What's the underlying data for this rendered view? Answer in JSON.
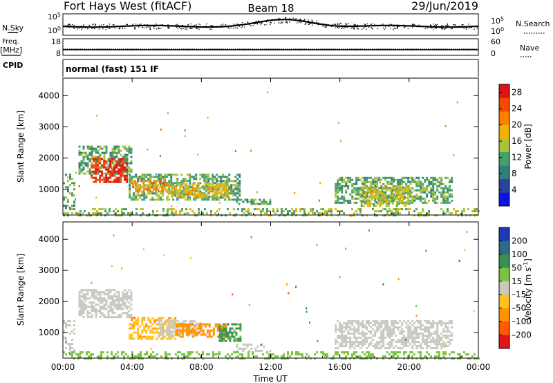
{
  "header": {
    "station": "Fort Hays West (fitACF)",
    "beam": "Beam 18",
    "date": "29/Jun/2019"
  },
  "top_panels": {
    "nsky_label": "N.Sky",
    "nsearch_label": "N.Search",
    "nsky_tick_top": "10^5",
    "nsky_tick_bottom": "10^0",
    "nsearch_tick_top": "10^5",
    "nsearch_tick_bottom": "10^0",
    "freq_label_line1": "Freq.",
    "freq_label_line2": "[MHz]",
    "freq_tick_top": "18",
    "freq_tick_bottom": "8",
    "nave_label": "Nave",
    "nave_tick_top": "60",
    "nave_tick_bottom": "0",
    "cpid_label": "CPID",
    "mode_text": "normal (fast) 151 IF"
  },
  "chart_data": [
    {
      "type": "heatmap",
      "panel": "power",
      "ylabel": "Slant Range [km]",
      "xlabel": "",
      "x_tick_labels": [
        "00:00",
        "04:00",
        "08:00",
        "12:00",
        "16:00",
        "20:00",
        "00:00"
      ],
      "x_ticks_hours": [
        0,
        4,
        8,
        12,
        16,
        20,
        24
      ],
      "xlim_hours": [
        0,
        24
      ],
      "ylim_km": [
        180,
        4560
      ],
      "y_ticks": [
        1000,
        2000,
        3000,
        4000
      ],
      "colorbar": {
        "label": "Power [dB]",
        "tick_labels": [
          "4",
          "8",
          "12",
          "16",
          "20",
          "24",
          "28"
        ],
        "range": [
          0,
          30
        ],
        "colors": [
          "#0a14e6",
          "#2545a0",
          "#2f7f7a",
          "#46a06a",
          "#a8c23a",
          "#f0b400",
          "#ff7f00",
          "#f24a00",
          "#e01414"
        ]
      },
      "regions": [
        {
          "t0": 0.0,
          "t1": 0.7,
          "r0": 400,
          "r1": 1500,
          "value": 12
        },
        {
          "t0": 0.9,
          "t1": 4.0,
          "r0": 1500,
          "r1": 2400,
          "value": 12
        },
        {
          "t0": 1.6,
          "t1": 3.7,
          "r0": 1250,
          "r1": 2000,
          "value": 27
        },
        {
          "t0": 3.8,
          "t1": 10.2,
          "r0": 700,
          "r1": 1500,
          "value": 12
        },
        {
          "t0": 4.0,
          "t1": 6.0,
          "r0": 950,
          "r1": 1300,
          "value": 20
        },
        {
          "t0": 6.0,
          "t1": 9.5,
          "r0": 800,
          "r1": 1200,
          "value": 17
        },
        {
          "t0": 10.0,
          "t1": 12.0,
          "r0": 550,
          "r1": 700,
          "value": 12
        },
        {
          "t0": 15.7,
          "t1": 22.5,
          "r0": 600,
          "r1": 1400,
          "value": 12
        },
        {
          "t0": 17.2,
          "t1": 20.0,
          "r0": 450,
          "r1": 1100,
          "value": 16
        },
        {
          "t0": 0.0,
          "t1": 24.0,
          "r0": 190,
          "r1": 400,
          "value": 14
        }
      ]
    },
    {
      "type": "heatmap",
      "panel": "velocity",
      "ylabel": "Slant Range [km]",
      "xlabel": "Time UT",
      "x_tick_labels": [
        "00:00",
        "04:00",
        "08:00",
        "12:00",
        "16:00",
        "20:00",
        "00:00"
      ],
      "x_ticks_hours": [
        0,
        4,
        8,
        12,
        16,
        20,
        24
      ],
      "xlim_hours": [
        0,
        24
      ],
      "ylim_km": [
        180,
        4560
      ],
      "y_ticks": [
        1000,
        2000,
        3000,
        4000
      ],
      "colorbar": {
        "label": "Velocity [m s^-1]",
        "tick_labels": [
          "200",
          "100",
          "50",
          "15",
          "-15",
          "-50",
          "-100",
          "-200"
        ],
        "colors": [
          "#1a3ab8",
          "#2a6a8a",
          "#3a8f55",
          "#7ac440",
          "#c8c8c0",
          "#ffc020",
          "#ff9400",
          "#ff5a00",
          "#e41414"
        ]
      },
      "regions": [
        {
          "t0": 0.0,
          "t1": 0.7,
          "r0": 400,
          "r1": 1400,
          "value": 0
        },
        {
          "t0": 0.9,
          "t1": 4.0,
          "r0": 1500,
          "r1": 2400,
          "value": 0
        },
        {
          "t0": 3.8,
          "t1": 6.5,
          "r0": 800,
          "r1": 1500,
          "value": -40
        },
        {
          "t0": 5.5,
          "t1": 8.0,
          "r0": 900,
          "r1": 1400,
          "value": 0
        },
        {
          "t0": 6.5,
          "t1": 9.5,
          "r0": 850,
          "r1": 1300,
          "value": -70
        },
        {
          "t0": 9.0,
          "t1": 10.2,
          "r0": 700,
          "r1": 1300,
          "value": 60
        },
        {
          "t0": 10.0,
          "t1": 12.0,
          "r0": 400,
          "r1": 650,
          "value": 0
        },
        {
          "t0": 15.7,
          "t1": 22.5,
          "r0": 500,
          "r1": 1400,
          "value": 0
        },
        {
          "t0": 0.0,
          "t1": 24.0,
          "r0": 190,
          "r1": 400,
          "value": 30
        }
      ]
    }
  ]
}
